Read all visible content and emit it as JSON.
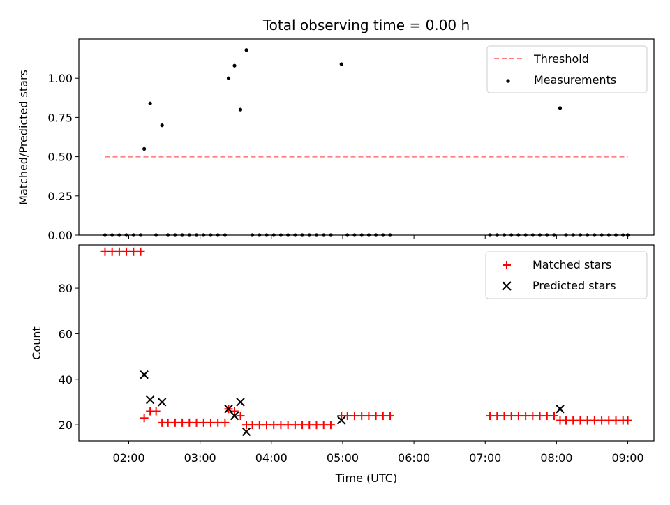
{
  "chart_data": [
    {
      "type": "scatter",
      "title": "Total observing time = 0.00 h",
      "xlabel": "",
      "ylabel": "Matched/Predicted stars",
      "xlim": [
        "01:18",
        "09:22"
      ],
      "ylim": [
        0,
        1.25
      ],
      "yticks": [
        {
          "value": 0,
          "label": "0.00"
        },
        {
          "value": 0.25,
          "label": "0.25"
        },
        {
          "value": 0.5,
          "label": "0.50"
        },
        {
          "value": 0.75,
          "label": "0.75"
        },
        {
          "value": 1.0,
          "label": "1.00"
        }
      ],
      "legend": {
        "placement": "upper right",
        "entries": [
          "Threshold",
          "Measurements"
        ]
      },
      "threshold": {
        "name": "Threshold",
        "value": 0.5,
        "x_start": "01:40",
        "x_end": "09:00",
        "color": "#ff7f7f",
        "style": "dashed"
      },
      "series": [
        {
          "name": "Measurements",
          "color": "#000000",
          "marker": "dot",
          "points": [
            {
              "x": "01:40",
              "y": 0
            },
            {
              "x": "01:46",
              "y": 0
            },
            {
              "x": "01:52",
              "y": 0
            },
            {
              "x": "01:58",
              "y": 0
            },
            {
              "x": "02:04",
              "y": 0
            },
            {
              "x": "02:10",
              "y": 0
            },
            {
              "x": "02:13",
              "y": 0.55
            },
            {
              "x": "02:18",
              "y": 0.84
            },
            {
              "x": "02:23",
              "y": 0
            },
            {
              "x": "02:28",
              "y": 0.7
            },
            {
              "x": "02:33",
              "y": 0
            },
            {
              "x": "02:39",
              "y": 0
            },
            {
              "x": "02:45",
              "y": 0
            },
            {
              "x": "02:51",
              "y": 0
            },
            {
              "x": "02:57",
              "y": 0
            },
            {
              "x": "03:03",
              "y": 0
            },
            {
              "x": "03:09",
              "y": 0
            },
            {
              "x": "03:15",
              "y": 0
            },
            {
              "x": "03:21",
              "y": 0
            },
            {
              "x": "03:24",
              "y": 1.0
            },
            {
              "x": "03:29",
              "y": 1.08
            },
            {
              "x": "03:34",
              "y": 0.8
            },
            {
              "x": "03:39",
              "y": 1.18
            },
            {
              "x": "03:44",
              "y": 0
            },
            {
              "x": "03:50",
              "y": 0
            },
            {
              "x": "03:56",
              "y": 0
            },
            {
              "x": "04:02",
              "y": 0
            },
            {
              "x": "04:08",
              "y": 0
            },
            {
              "x": "04:14",
              "y": 0
            },
            {
              "x": "04:20",
              "y": 0
            },
            {
              "x": "04:26",
              "y": 0
            },
            {
              "x": "04:32",
              "y": 0
            },
            {
              "x": "04:38",
              "y": 0
            },
            {
              "x": "04:44",
              "y": 0
            },
            {
              "x": "04:50",
              "y": 0
            },
            {
              "x": "04:59",
              "y": 1.09
            },
            {
              "x": "05:04",
              "y": 0
            },
            {
              "x": "05:10",
              "y": 0
            },
            {
              "x": "05:16",
              "y": 0
            },
            {
              "x": "05:22",
              "y": 0
            },
            {
              "x": "05:28",
              "y": 0
            },
            {
              "x": "05:34",
              "y": 0
            },
            {
              "x": "05:40",
              "y": 0
            },
            {
              "x": "07:04",
              "y": 0
            },
            {
              "x": "07:10",
              "y": 0
            },
            {
              "x": "07:16",
              "y": 0
            },
            {
              "x": "07:22",
              "y": 0
            },
            {
              "x": "07:28",
              "y": 0
            },
            {
              "x": "07:34",
              "y": 0
            },
            {
              "x": "07:40",
              "y": 0
            },
            {
              "x": "07:46",
              "y": 0
            },
            {
              "x": "07:52",
              "y": 0
            },
            {
              "x": "07:58",
              "y": 0
            },
            {
              "x": "08:03",
              "y": 0.81
            },
            {
              "x": "08:08",
              "y": 0
            },
            {
              "x": "08:14",
              "y": 0
            },
            {
              "x": "08:20",
              "y": 0
            },
            {
              "x": "08:26",
              "y": 0
            },
            {
              "x": "08:32",
              "y": 0
            },
            {
              "x": "08:38",
              "y": 0
            },
            {
              "x": "08:44",
              "y": 0
            },
            {
              "x": "08:50",
              "y": 0
            },
            {
              "x": "08:56",
              "y": 0
            },
            {
              "x": "09:00",
              "y": 0
            }
          ]
        }
      ]
    },
    {
      "type": "scatter",
      "title": "",
      "xlabel": "Time (UTC)",
      "ylabel": "Count",
      "xlim": [
        "01:18",
        "09:22"
      ],
      "ylim": [
        13,
        99
      ],
      "xticks": [
        "02:00",
        "03:00",
        "04:00",
        "05:00",
        "06:00",
        "07:00",
        "08:00",
        "09:00"
      ],
      "yticks": [
        {
          "value": 20,
          "label": "20"
        },
        {
          "value": 40,
          "label": "40"
        },
        {
          "value": 60,
          "label": "60"
        },
        {
          "value": 80,
          "label": "80"
        }
      ],
      "legend": {
        "placement": "upper right",
        "entries": [
          "Matched stars",
          "Predicted stars"
        ]
      },
      "series": [
        {
          "name": "Matched stars",
          "color": "#ff0000",
          "marker": "plus",
          "points": [
            {
              "x": "01:40",
              "y": 96
            },
            {
              "x": "01:46",
              "y": 96
            },
            {
              "x": "01:52",
              "y": 96
            },
            {
              "x": "01:58",
              "y": 96
            },
            {
              "x": "02:04",
              "y": 96
            },
            {
              "x": "02:10",
              "y": 96
            },
            {
              "x": "02:13",
              "y": 23
            },
            {
              "x": "02:18",
              "y": 26
            },
            {
              "x": "02:23",
              "y": 26
            },
            {
              "x": "02:28",
              "y": 21
            },
            {
              "x": "02:33",
              "y": 21
            },
            {
              "x": "02:39",
              "y": 21
            },
            {
              "x": "02:45",
              "y": 21
            },
            {
              "x": "02:51",
              "y": 21
            },
            {
              "x": "02:57",
              "y": 21
            },
            {
              "x": "03:03",
              "y": 21
            },
            {
              "x": "03:09",
              "y": 21
            },
            {
              "x": "03:15",
              "y": 21
            },
            {
              "x": "03:21",
              "y": 21
            },
            {
              "x": "03:24",
              "y": 27
            },
            {
              "x": "03:29",
              "y": 26
            },
            {
              "x": "03:34",
              "y": 24
            },
            {
              "x": "03:39",
              "y": 20
            },
            {
              "x": "03:44",
              "y": 20
            },
            {
              "x": "03:50",
              "y": 20
            },
            {
              "x": "03:56",
              "y": 20
            },
            {
              "x": "04:02",
              "y": 20
            },
            {
              "x": "04:08",
              "y": 20
            },
            {
              "x": "04:14",
              "y": 20
            },
            {
              "x": "04:20",
              "y": 20
            },
            {
              "x": "04:26",
              "y": 20
            },
            {
              "x": "04:32",
              "y": 20
            },
            {
              "x": "04:38",
              "y": 20
            },
            {
              "x": "04:44",
              "y": 20
            },
            {
              "x": "04:50",
              "y": 20
            },
            {
              "x": "04:59",
              "y": 24
            },
            {
              "x": "05:04",
              "y": 24
            },
            {
              "x": "05:10",
              "y": 24
            },
            {
              "x": "05:16",
              "y": 24
            },
            {
              "x": "05:22",
              "y": 24
            },
            {
              "x": "05:28",
              "y": 24
            },
            {
              "x": "05:34",
              "y": 24
            },
            {
              "x": "05:40",
              "y": 24
            },
            {
              "x": "07:04",
              "y": 24
            },
            {
              "x": "07:10",
              "y": 24
            },
            {
              "x": "07:16",
              "y": 24
            },
            {
              "x": "07:22",
              "y": 24
            },
            {
              "x": "07:28",
              "y": 24
            },
            {
              "x": "07:34",
              "y": 24
            },
            {
              "x": "07:40",
              "y": 24
            },
            {
              "x": "07:46",
              "y": 24
            },
            {
              "x": "07:52",
              "y": 24
            },
            {
              "x": "07:58",
              "y": 24
            },
            {
              "x": "08:03",
              "y": 22
            },
            {
              "x": "08:08",
              "y": 22
            },
            {
              "x": "08:14",
              "y": 22
            },
            {
              "x": "08:20",
              "y": 22
            },
            {
              "x": "08:26",
              "y": 22
            },
            {
              "x": "08:32",
              "y": 22
            },
            {
              "x": "08:38",
              "y": 22
            },
            {
              "x": "08:44",
              "y": 22
            },
            {
              "x": "08:50",
              "y": 22
            },
            {
              "x": "08:56",
              "y": 22
            },
            {
              "x": "09:00",
              "y": 22
            }
          ]
        },
        {
          "name": "Predicted stars",
          "color": "#000000",
          "marker": "x",
          "points": [
            {
              "x": "02:13",
              "y": 42
            },
            {
              "x": "02:18",
              "y": 31
            },
            {
              "x": "02:28",
              "y": 30
            },
            {
              "x": "03:24",
              "y": 27
            },
            {
              "x": "03:29",
              "y": 24
            },
            {
              "x": "03:34",
              "y": 30
            },
            {
              "x": "03:39",
              "y": 17
            },
            {
              "x": "04:59",
              "y": 22
            },
            {
              "x": "08:03",
              "y": 27
            }
          ]
        }
      ]
    }
  ]
}
